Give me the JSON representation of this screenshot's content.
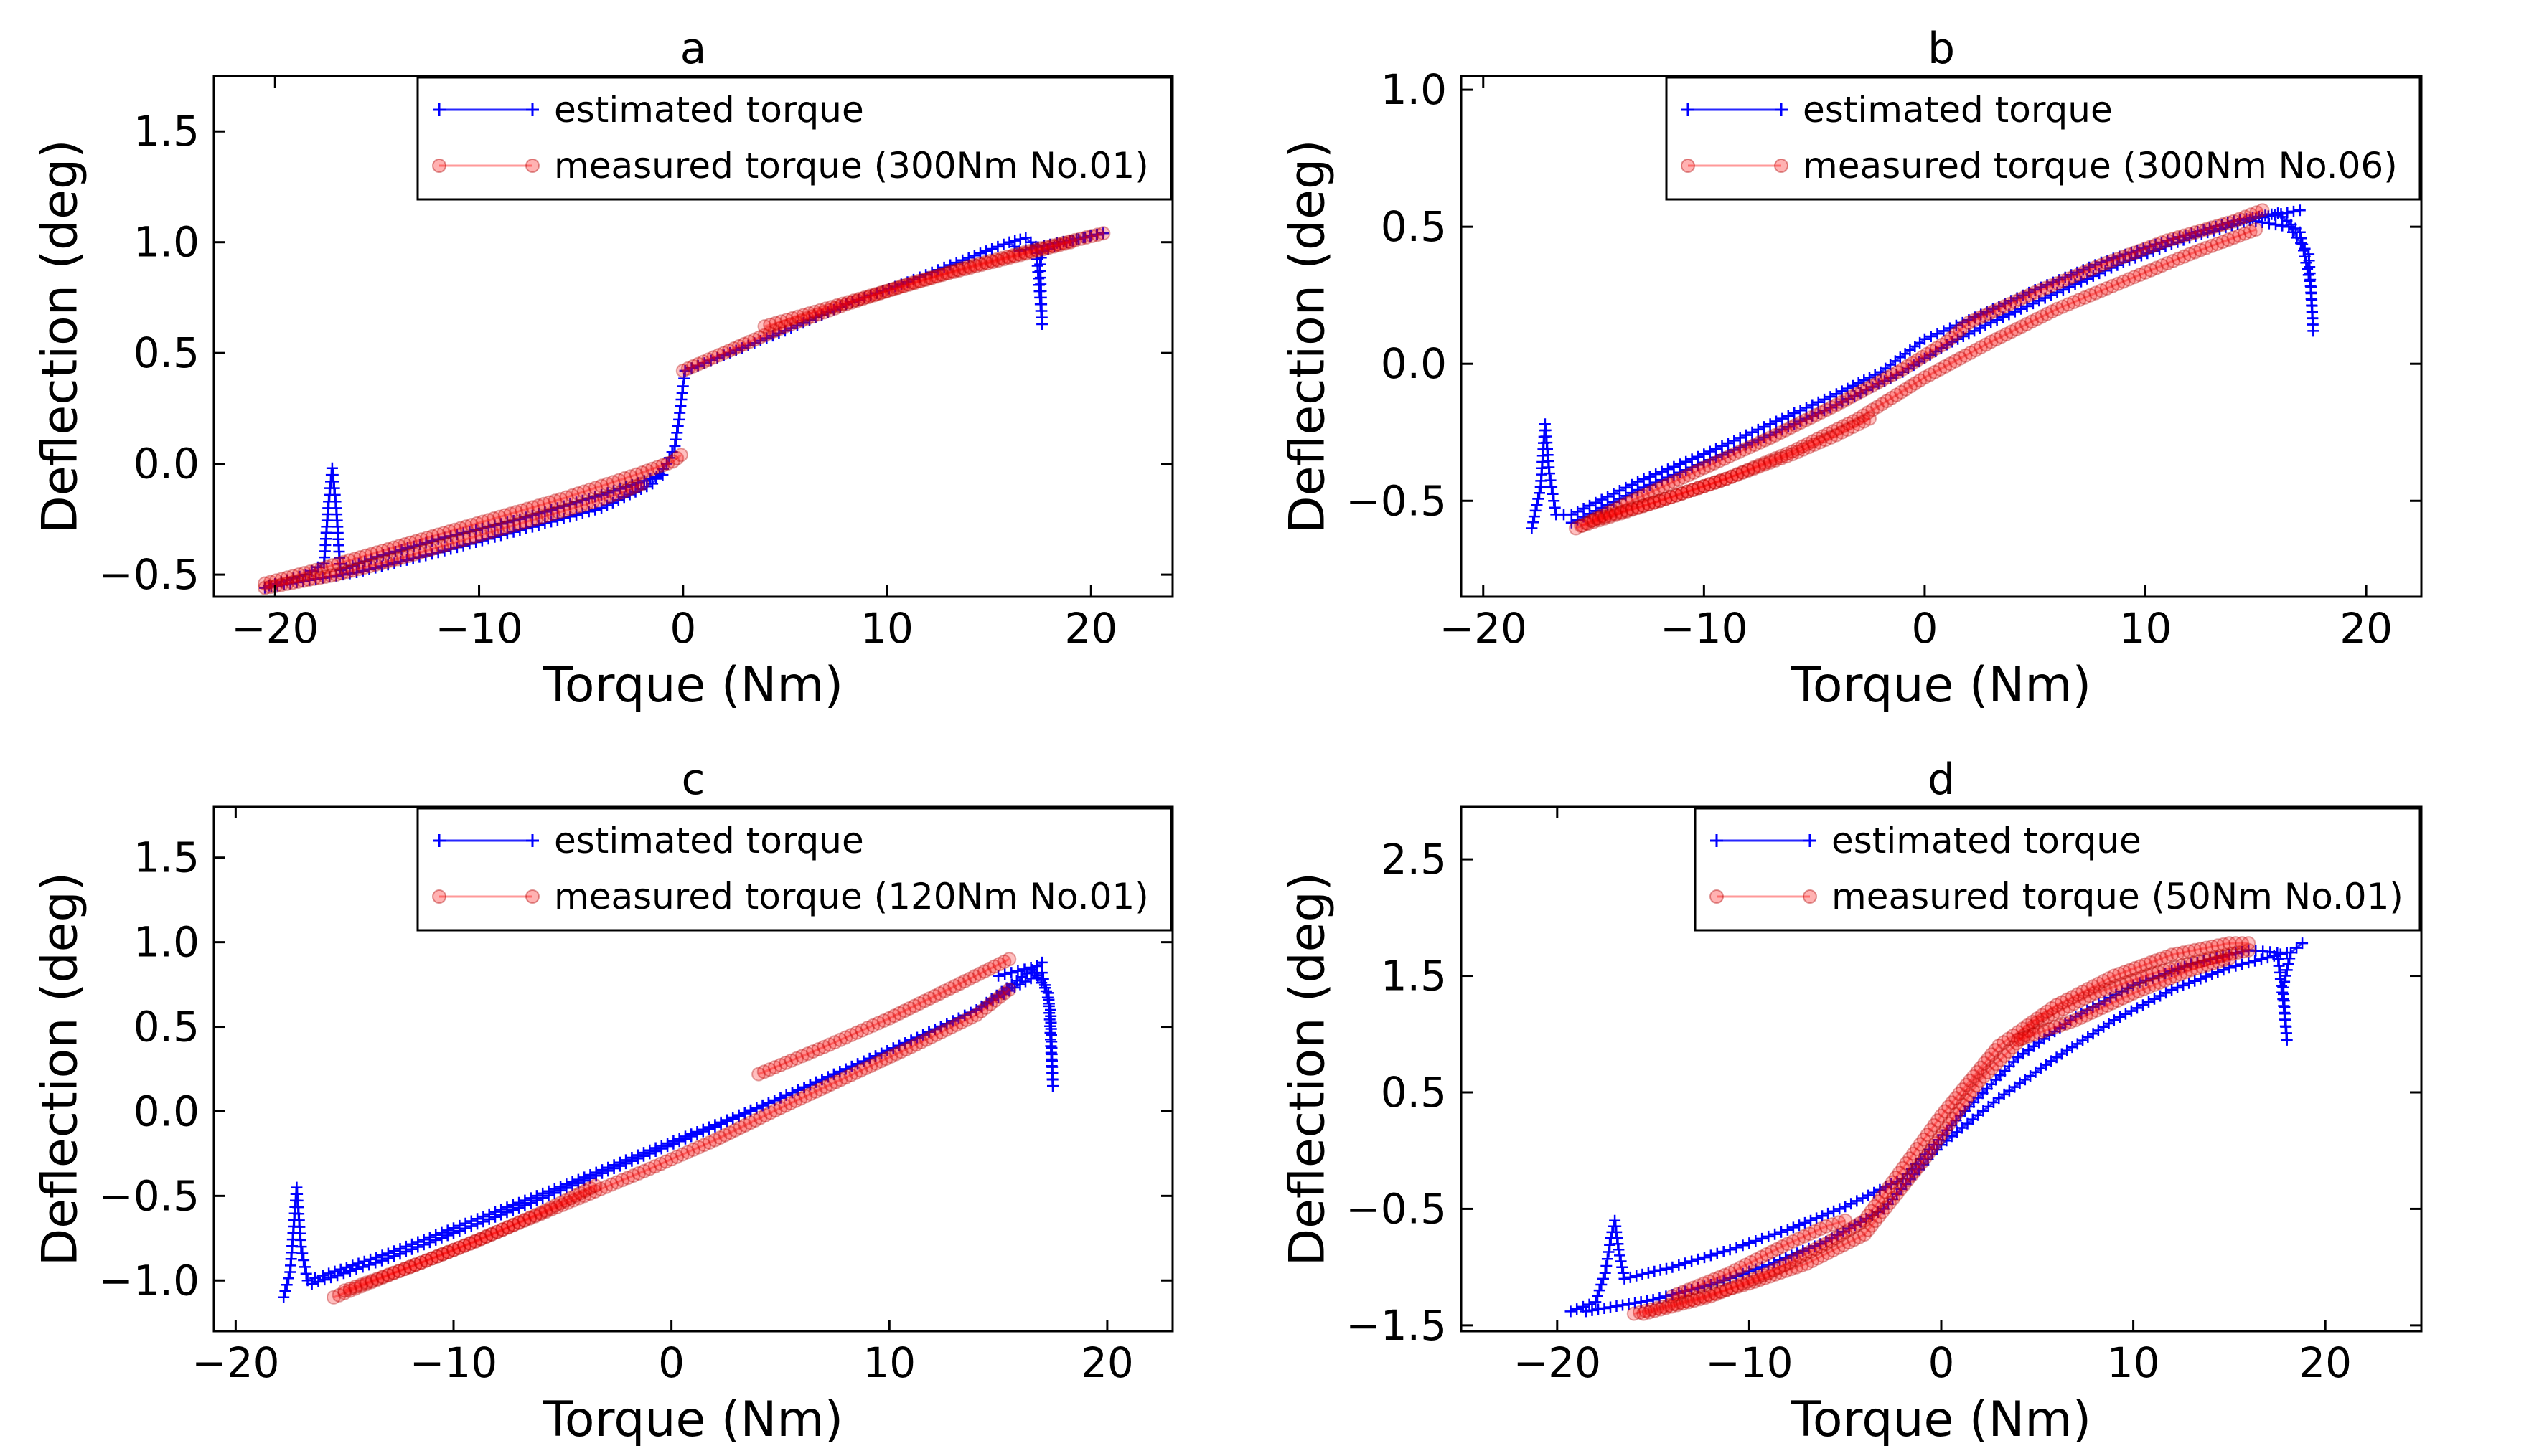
{
  "chart_data": [
    {
      "type": "line",
      "title": "a",
      "xlabel": "Torque (Nm)",
      "ylabel": "Deflection (deg)",
      "xlim": [
        -23,
        24
      ],
      "ylim": [
        -0.6,
        1.75
      ],
      "xticks": [
        -20,
        -10,
        0,
        10,
        20
      ],
      "xtick_labels": [
        "−20",
        "−10",
        "0",
        "10",
        "20"
      ],
      "yticks": [
        -0.5,
        0.0,
        0.5,
        1.0,
        1.5
      ],
      "ytick_labels": [
        "−0.5",
        "0.0",
        "0.5",
        "1.0",
        "1.5"
      ],
      "legend": "top-right",
      "series": [
        {
          "name": "estimated torque",
          "color": "#0000ff",
          "marker": "+",
          "loops": [
            {
              "x": [
                -20.5,
                -18.0,
                -16.0,
                -12.0,
                -8.0,
                -4.0,
                -1.5,
                -0.8,
                -0.4,
                -0.2,
                0.0,
                0.1,
                2.0,
                5.0,
                8.0,
                11.0,
                14.0,
                16.0,
                16.8,
                17.3,
                17.5,
                17.6,
                17.5,
                17.6,
                18.5,
                20.0,
                20.6
              ],
              "y": [
                -0.56,
                -0.52,
                -0.49,
                -0.4,
                -0.3,
                -0.2,
                -0.09,
                0.0,
                0.08,
                0.2,
                0.35,
                0.42,
                0.49,
                0.6,
                0.72,
                0.82,
                0.93,
                1.0,
                1.02,
                0.98,
                0.75,
                0.63,
                0.9,
                0.96,
                0.99,
                1.03,
                1.04
              ]
            },
            {
              "x": [
                -20.3,
                -18.5,
                -17.6,
                -17.4,
                -17.2,
                -17.0,
                -16.8,
                -15.0,
                -12.0,
                -8.0,
                -4.0,
                -1.0
              ],
              "y": [
                -0.55,
                -0.5,
                -0.45,
                -0.2,
                -0.02,
                -0.2,
                -0.48,
                -0.42,
                -0.34,
                -0.25,
                -0.14,
                -0.05
              ]
            },
            {
              "x": [
                20.6,
                18.0,
                16.5,
                16.0
              ],
              "y": [
                1.04,
                0.99,
                0.96,
                1.0
              ]
            }
          ]
        },
        {
          "name": "measured torque (300Nm No.01)",
          "color": "#ff0000",
          "marker": "o",
          "loops": [
            {
              "x": [
                -20.5,
                -18.0,
                -15.0,
                -12.0,
                -9.0,
                -6.0,
                -4.0,
                -2.0,
                -0.5,
                -0.1
              ],
              "y": [
                -0.54,
                -0.48,
                -0.4,
                -0.32,
                -0.24,
                -0.16,
                -0.1,
                -0.04,
                0.01,
                0.04
              ]
            },
            {
              "x": [
                -20.5,
                -17.0,
                -14.0,
                -11.0,
                -8.0,
                -5.0,
                -3.0,
                -2.0
              ],
              "y": [
                -0.56,
                -0.5,
                -0.43,
                -0.35,
                -0.27,
                -0.19,
                -0.13,
                -0.09
              ]
            },
            {
              "x": [
                0.0,
                2.0,
                5.0,
                8.0,
                11.0,
                14.0,
                17.0,
                20.6
              ],
              "y": [
                0.42,
                0.5,
                0.62,
                0.72,
                0.81,
                0.89,
                0.96,
                1.04
              ]
            },
            {
              "x": [
                4.0,
                7.0,
                10.0,
                13.0,
                16.0,
                19.0
              ],
              "y": [
                0.62,
                0.7,
                0.78,
                0.86,
                0.93,
                1.0
              ]
            }
          ]
        }
      ]
    },
    {
      "type": "line",
      "title": "b",
      "xlabel": "Torque (Nm)",
      "ylabel": "Deflection (deg)",
      "xlim": [
        -21,
        22.5
      ],
      "ylim": [
        -0.85,
        1.05
      ],
      "xticks": [
        -20,
        -10,
        0,
        10,
        20
      ],
      "xtick_labels": [
        "−20",
        "−10",
        "0",
        "10",
        "20"
      ],
      "yticks": [
        -0.5,
        0.0,
        0.5,
        1.0
      ],
      "ytick_labels": [
        "−0.5",
        "0.0",
        "0.5",
        "1.0"
      ],
      "legend": "top-right",
      "series": [
        {
          "name": "estimated torque",
          "color": "#0000ff",
          "marker": "+",
          "loops": [
            {
              "x": [
                -17.8,
                -17.4,
                -17.2,
                -17.0,
                -16.7,
                -16.0,
                -13.0,
                -10.0,
                -7.0,
                -4.0,
                -2.0,
                0.0,
                2.0,
                5.0,
                8.0,
                11.0,
                14.0,
                16.0,
                17.0,
                17.5,
                17.6,
                17.4,
                16.5,
                15.0
              ],
              "y": [
                -0.6,
                -0.45,
                -0.22,
                -0.4,
                -0.55,
                -0.55,
                -0.43,
                -0.33,
                -0.22,
                -0.11,
                -0.03,
                0.09,
                0.16,
                0.27,
                0.37,
                0.45,
                0.52,
                0.55,
                0.48,
                0.28,
                0.12,
                0.4,
                0.5,
                0.52
              ]
            },
            {
              "x": [
                -16.0,
                -13.0,
                -10.0,
                -7.0,
                -4.0,
                -1.0,
                1.0,
                3.0,
                6.0,
                9.0,
                12.0,
                15.0,
                17.0
              ],
              "y": [
                -0.58,
                -0.46,
                -0.36,
                -0.26,
                -0.15,
                -0.03,
                0.07,
                0.15,
                0.26,
                0.37,
                0.46,
                0.53,
                0.56
              ]
            }
          ]
        },
        {
          "name": "measured torque (300Nm No.06)",
          "color": "#ff0000",
          "marker": "o",
          "loops": [
            {
              "x": [
                -15.8,
                -13.0,
                -10.0,
                -7.0,
                -4.0,
                -1.0,
                1.0,
                2.0,
                5.0,
                8.0,
                11.0,
                14.0,
                15.3
              ],
              "y": [
                -0.6,
                -0.49,
                -0.38,
                -0.27,
                -0.15,
                -0.02,
                0.08,
                0.15,
                0.26,
                0.36,
                0.45,
                0.52,
                0.56
              ]
            },
            {
              "x": [
                -15.5,
                -12.0,
                -9.0,
                -6.0,
                -3.0,
                0.0,
                3.0,
                6.0,
                9.0,
                12.0,
                15.0
              ],
              "y": [
                -0.59,
                -0.5,
                -0.42,
                -0.32,
                -0.2,
                -0.05,
                0.08,
                0.2,
                0.3,
                0.4,
                0.49
              ]
            },
            {
              "x": [
                -15.0,
                -12.0,
                -9.0,
                -6.0,
                -4.0,
                -2.5
              ],
              "y": [
                -0.57,
                -0.5,
                -0.42,
                -0.33,
                -0.26,
                -0.2
              ]
            }
          ]
        }
      ]
    },
    {
      "type": "line",
      "title": "c",
      "xlabel": "Torque (Nm)",
      "ylabel": "Deflection (deg)",
      "xlim": [
        -21,
        23
      ],
      "ylim": [
        -1.3,
        1.8
      ],
      "xticks": [
        -20,
        -10,
        0,
        10,
        20
      ],
      "xtick_labels": [
        "−20",
        "−10",
        "0",
        "10",
        "20"
      ],
      "yticks": [
        -1.0,
        -0.5,
        0.0,
        0.5,
        1.0,
        1.5
      ],
      "ytick_labels": [
        "−1.0",
        "−0.5",
        "0.0",
        "0.5",
        "1.0",
        "1.5"
      ],
      "legend": "top-right",
      "series": [
        {
          "name": "estimated torque",
          "color": "#0000ff",
          "marker": "+",
          "loops": [
            {
              "x": [
                -17.8,
                -17.5,
                -17.2,
                -17.0,
                -16.7,
                -16.0,
                -13.0,
                -10.0,
                -7.0,
                -4.0,
                -1.0,
                2.0,
                5.0,
                8.0,
                11.0,
                14.0,
                16.0,
                17.0,
                17.4,
                17.5,
                17.3,
                16.5,
                15.0
              ],
              "y": [
                -1.1,
                -0.95,
                -0.45,
                -0.8,
                -1.0,
                -0.97,
                -0.84,
                -0.69,
                -0.54,
                -0.39,
                -0.23,
                -0.08,
                0.08,
                0.25,
                0.42,
                0.6,
                0.75,
                0.82,
                0.6,
                0.15,
                0.7,
                0.85,
                0.8
              ]
            },
            {
              "x": [
                -16.5,
                -13.0,
                -10.0,
                -7.0,
                -4.0,
                -1.0,
                2.0,
                5.0,
                8.0,
                11.0,
                14.0,
                17.0
              ],
              "y": [
                -1.02,
                -0.87,
                -0.72,
                -0.57,
                -0.41,
                -0.25,
                -0.09,
                0.08,
                0.25,
                0.42,
                0.6,
                0.88
              ]
            }
          ]
        },
        {
          "name": "measured torque (120Nm No.01)",
          "color": "#ff0000",
          "marker": "o",
          "loops": [
            {
              "x": [
                -15.5,
                -13.0,
                -10.0,
                -7.0,
                -4.0,
                -1.0,
                2.0,
                5.0,
                8.0,
                11.0,
                14.0,
                15.5
              ],
              "y": [
                -1.1,
                -0.97,
                -0.82,
                -0.66,
                -0.5,
                -0.34,
                -0.17,
                0.02,
                0.2,
                0.38,
                0.57,
                0.72
              ]
            },
            {
              "x": [
                -15.0,
                -12.0,
                -9.0,
                -6.0,
                -3.5
              ],
              "y": [
                -1.06,
                -0.92,
                -0.77,
                -0.6,
                -0.44
              ]
            },
            {
              "x": [
                4.0,
                7.0,
                10.0,
                13.0,
                15.5
              ],
              "y": [
                0.22,
                0.38,
                0.55,
                0.74,
                0.9
              ]
            }
          ]
        }
      ]
    },
    {
      "type": "line",
      "title": "d",
      "xlabel": "Torque (Nm)",
      "ylabel": "Deflection (deg)",
      "xlim": [
        -25,
        25
      ],
      "ylim": [
        -1.55,
        2.95
      ],
      "xticks": [
        -20,
        -10,
        0,
        10,
        20
      ],
      "xtick_labels": [
        "−20",
        "−10",
        "0",
        "10",
        "20"
      ],
      "yticks": [
        -1.5,
        -0.5,
        0.5,
        1.5,
        2.5
      ],
      "ytick_labels": [
        "−1.5",
        "−0.5",
        "0.5",
        "1.5",
        "2.5"
      ],
      "legend": "top-right",
      "series": [
        {
          "name": "estimated torque",
          "color": "#0000ff",
          "marker": "+",
          "loops": [
            {
              "x": [
                -19.3,
                -18.0,
                -17.5,
                -17.2,
                -17.0,
                -16.8,
                -16.5,
                -14.0,
                -11.0,
                -8.0,
                -5.0,
                -2.0,
                1.0,
                4.0,
                7.0,
                10.0,
                13.0,
                16.0,
                17.5,
                17.8,
                18.0,
                17.8,
                18.2,
                18.8
              ],
              "y": [
                -1.38,
                -1.3,
                -1.05,
                -0.75,
                -0.6,
                -0.85,
                -1.1,
                -1.0,
                -0.85,
                -0.68,
                -0.48,
                -0.24,
                0.3,
                0.8,
                1.15,
                1.42,
                1.6,
                1.72,
                1.7,
                1.3,
                0.95,
                1.4,
                1.7,
                1.78
              ]
            },
            {
              "x": [
                -18.5,
                -15.0,
                -12.0,
                -9.0,
                -6.0,
                -3.0,
                0.0,
                3.0,
                6.0,
                9.0,
                12.0,
                15.0,
                18.0
              ],
              "y": [
                -1.38,
                -1.28,
                -1.15,
                -0.98,
                -0.78,
                -0.5,
                0.05,
                0.45,
                0.8,
                1.12,
                1.38,
                1.57,
                1.7
              ]
            }
          ]
        },
        {
          "name": "measured torque (50Nm No.01)",
          "color": "#ff0000",
          "marker": "o",
          "loops": [
            {
              "x": [
                -16.0,
                -13.0,
                -10.0,
                -7.0,
                -4.0,
                -1.0,
                2.0,
                5.0,
                8.0,
                11.0,
                14.0,
                16.0
              ],
              "y": [
                -1.4,
                -1.28,
                -1.14,
                -0.97,
                -0.72,
                -0.1,
                0.6,
                1.1,
                1.35,
                1.52,
                1.65,
                1.72
              ]
            },
            {
              "x": [
                -15.5,
                -12.0,
                -9.0,
                -6.0,
                -4.0,
                -2.0,
                0.0,
                3.0,
                6.0,
                9.0,
                12.0,
                15.0,
                16.0
              ],
              "y": [
                -1.4,
                -1.25,
                -1.05,
                -0.8,
                -0.6,
                -0.15,
                0.3,
                0.9,
                1.25,
                1.5,
                1.68,
                1.78,
                1.78
              ]
            },
            {
              "x": [
                -14.0,
                -11.0,
                -8.0,
                -6.0,
                -5.0
              ],
              "y": [
                -1.25,
                -1.05,
                -0.8,
                -0.65,
                -0.6
              ]
            },
            {
              "x": [
                4.0,
                7.0,
                10.0,
                13.0,
                15.0
              ],
              "y": [
                0.95,
                1.12,
                1.35,
                1.55,
                1.65
              ]
            }
          ]
        }
      ]
    }
  ]
}
